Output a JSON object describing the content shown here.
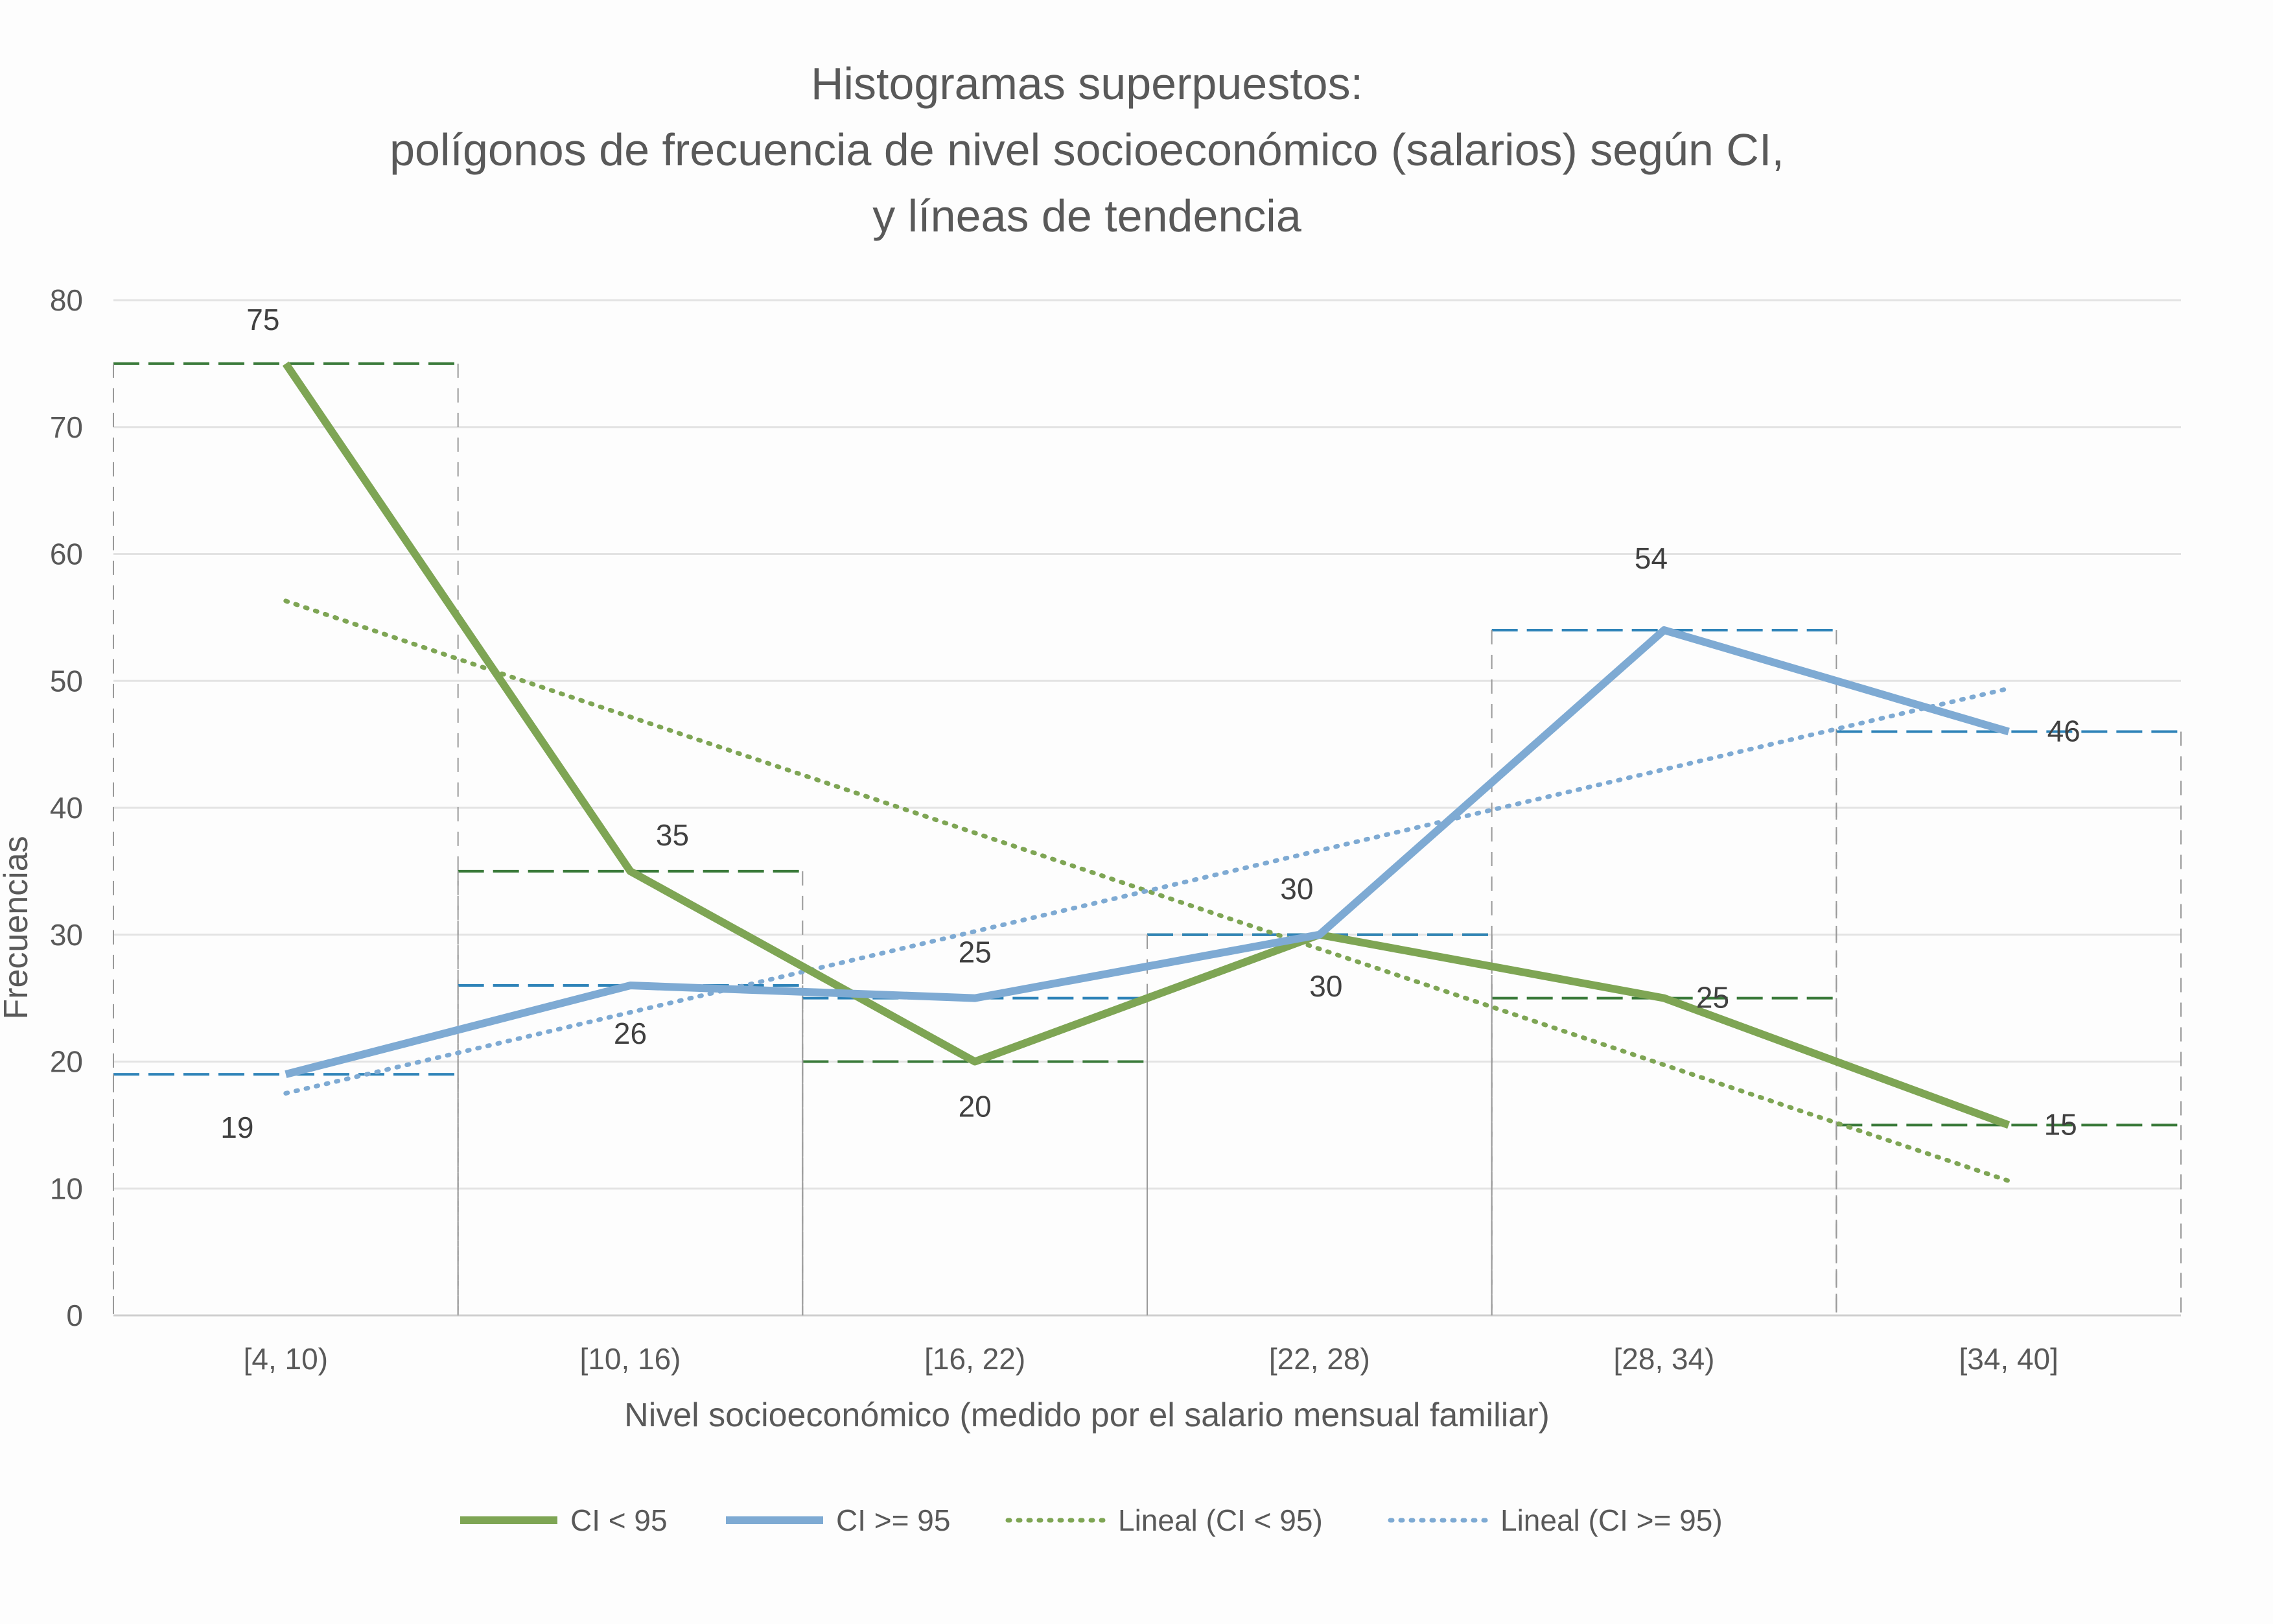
{
  "colors": {
    "green": "#7ea554",
    "blue": "#7eaad3",
    "grid": "#e3e3e3",
    "text": "#595959",
    "hist_green": "#3a7a3a",
    "hist_blue": "#2e83b8"
  },
  "chart_data": {
    "type": "line",
    "title": [
      "Histogramas superpuestos:",
      "polígonos de frecuencia de nivel socioeconómico (salarios) según CI,",
      "y líneas de tendencia"
    ],
    "xlabel": "Nivel socioeconómico (medido por el salario mensual familiar)",
    "ylabel": "Frecuencias",
    "categories": [
      "[4, 10)",
      "[10, 16)",
      "[16, 22)",
      "[22, 28)",
      "[28, 34)",
      "[34, 40]"
    ],
    "ylim": [
      0,
      80
    ],
    "yticks": [
      0,
      10,
      20,
      30,
      40,
      50,
      60,
      70,
      80
    ],
    "grid": true,
    "legend_position": "bottom",
    "series": [
      {
        "name": "CI < 95",
        "values": [
          75,
          35,
          20,
          30,
          25,
          15
        ],
        "color": "#7ea554",
        "style": "solid"
      },
      {
        "name": "CI >= 95",
        "values": [
          19,
          26,
          25,
          30,
          54,
          46
        ],
        "color": "#7eaad3",
        "style": "solid"
      }
    ],
    "trendlines": [
      {
        "name": "Lineal (CI < 95)",
        "start": 56.3,
        "end": 10.6,
        "color": "#7ea554",
        "style": "dotted"
      },
      {
        "name": "Lineal (CI >= 95)",
        "start": 17.5,
        "end": 49.4,
        "color": "#7eaad3",
        "style": "dotted"
      }
    ],
    "data_labels": {
      "CI < 95": [
        "75",
        "35",
        "20",
        "30",
        "25",
        "15"
      ],
      "CI >= 95": [
        "19",
        "26",
        "25",
        "30",
        "54",
        "46"
      ]
    }
  }
}
